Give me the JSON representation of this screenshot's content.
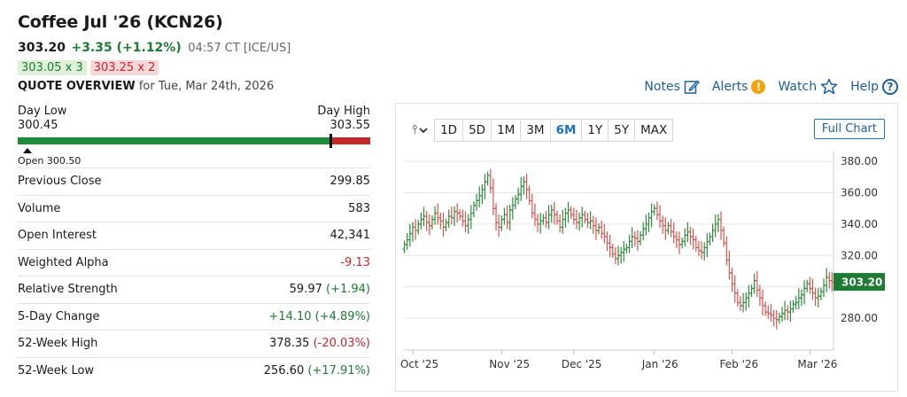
{
  "header": {
    "title": "Coffee Jul '26 (KCN26)",
    "last": "303.20",
    "change": "+3.35 (+1.12%)",
    "time": "04:57 CT [ICE/US]",
    "bid": "303.05 x 3",
    "ask": "303.25 x 2",
    "overview_label": "QUOTE OVERVIEW",
    "overview_date": "for Tue, Mar 24th, 2026"
  },
  "links": {
    "notes": "Notes",
    "alerts": "Alerts",
    "alerts_glyph": "!",
    "watch": "Watch",
    "help": "Help",
    "help_glyph": "?"
  },
  "range": {
    "low_label": "Day Low",
    "high_label": "Day High",
    "low": "300.45",
    "high": "303.55",
    "open_text": "Open 300.50",
    "low_value": 300.45,
    "high_value": 303.55,
    "last_value": 303.2,
    "open_value": 300.5
  },
  "stats": [
    {
      "label": "Previous Close",
      "value": "299.85",
      "tone": ""
    },
    {
      "label": "Volume",
      "value": "583",
      "tone": ""
    },
    {
      "label": "Open Interest",
      "value": "42,341",
      "tone": ""
    },
    {
      "label": "Weighted Alpha",
      "value": "-9.13",
      "tone": "neg"
    },
    {
      "label": "Relative Strength",
      "value": "59.97",
      "paren": "(+1.94)",
      "tone": "pos"
    },
    {
      "label": "5-Day Change",
      "value": "+14.10 (+4.89%)",
      "tone": "pos-all"
    },
    {
      "label": "52-Week High",
      "value": "378.35",
      "paren": "(-20.03%)",
      "tone": "neg"
    },
    {
      "label": "52-Week Low",
      "value": "256.60",
      "paren": "(+17.91%)",
      "tone": "pos"
    }
  ],
  "chart": {
    "timeframes": [
      "1D",
      "5D",
      "1M",
      "3M",
      "6M",
      "1Y",
      "5Y",
      "MAX"
    ],
    "active_timeframe": "6M",
    "tool_glyph": "⫯",
    "full_chart_label": "Full Chart",
    "last_label": "303.20"
  },
  "chart_data": {
    "type": "ohlc",
    "ylim": [
      262,
      384
    ],
    "yticks": [
      "380.00",
      "360.00",
      "340.00",
      "320.00",
      "280.00"
    ],
    "ytick_values": [
      380,
      360,
      340,
      320,
      280
    ],
    "xticks": [
      "Oct '25",
      "Nov '25",
      "Dec '25",
      "Jan '26",
      "Feb '26",
      "Mar '26"
    ],
    "xtick_index": [
      3,
      35,
      61,
      90,
      118,
      146
    ],
    "last": 303.2,
    "closes": [
      327,
      330,
      334,
      338,
      336,
      340,
      343,
      345,
      341,
      339,
      343,
      347,
      344,
      342,
      338,
      341,
      345,
      344,
      348,
      347,
      345,
      342,
      339,
      343,
      347,
      352,
      355,
      358,
      362,
      367,
      371,
      363,
      350,
      341,
      338,
      343,
      346,
      341,
      349,
      352,
      356,
      359,
      364,
      367,
      362,
      355,
      347,
      343,
      340,
      342,
      344,
      341,
      346,
      349,
      346,
      342,
      338,
      343,
      347,
      349,
      346,
      343,
      341,
      344,
      346,
      343,
      341,
      342,
      339,
      336,
      338,
      334,
      332,
      328,
      325,
      321,
      318,
      320,
      322,
      324,
      325,
      329,
      332,
      331,
      329,
      333,
      337,
      340,
      344,
      348,
      350,
      346,
      342,
      339,
      336,
      339,
      335,
      332,
      330,
      327,
      329,
      333,
      335,
      332,
      330,
      325,
      323,
      322,
      325,
      329,
      332,
      336,
      340,
      343,
      336,
      328,
      317,
      309,
      302,
      296,
      290,
      288,
      290,
      293,
      296,
      299,
      304,
      298,
      293,
      288,
      284,
      283,
      282,
      280,
      279,
      281,
      283,
      285,
      284,
      286,
      289,
      290,
      293,
      295,
      299,
      302,
      299,
      296,
      293,
      294,
      297,
      301,
      306,
      304,
      303.2
    ]
  }
}
